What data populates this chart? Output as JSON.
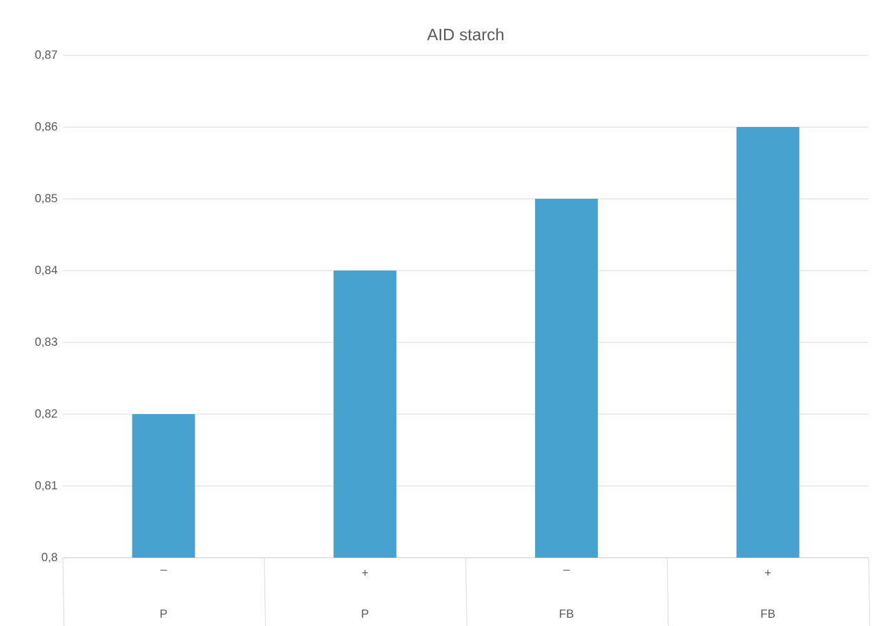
{
  "chart_data": {
    "type": "bar",
    "title": "AID starch",
    "categories": [
      "–",
      "+",
      "–",
      "+"
    ],
    "annotations": [
      "P",
      "P",
      "FB",
      "FB"
    ],
    "values": [
      0.82,
      0.84,
      0.85,
      0.86
    ],
    "color": "#47a2d0",
    "ylim": [
      0.8,
      0.87
    ],
    "yticks": [
      {
        "value": 0.8,
        "label": "0,8"
      },
      {
        "value": 0.81,
        "label": "0,81"
      },
      {
        "value": 0.82,
        "label": "0,82"
      },
      {
        "value": 0.83,
        "label": "0,83"
      },
      {
        "value": 0.84,
        "label": "0,84"
      },
      {
        "value": 0.85,
        "label": "0,85"
      },
      {
        "value": 0.86,
        "label": "0,86"
      },
      {
        "value": 0.87,
        "label": "0,87"
      }
    ],
    "grid": "y"
  }
}
